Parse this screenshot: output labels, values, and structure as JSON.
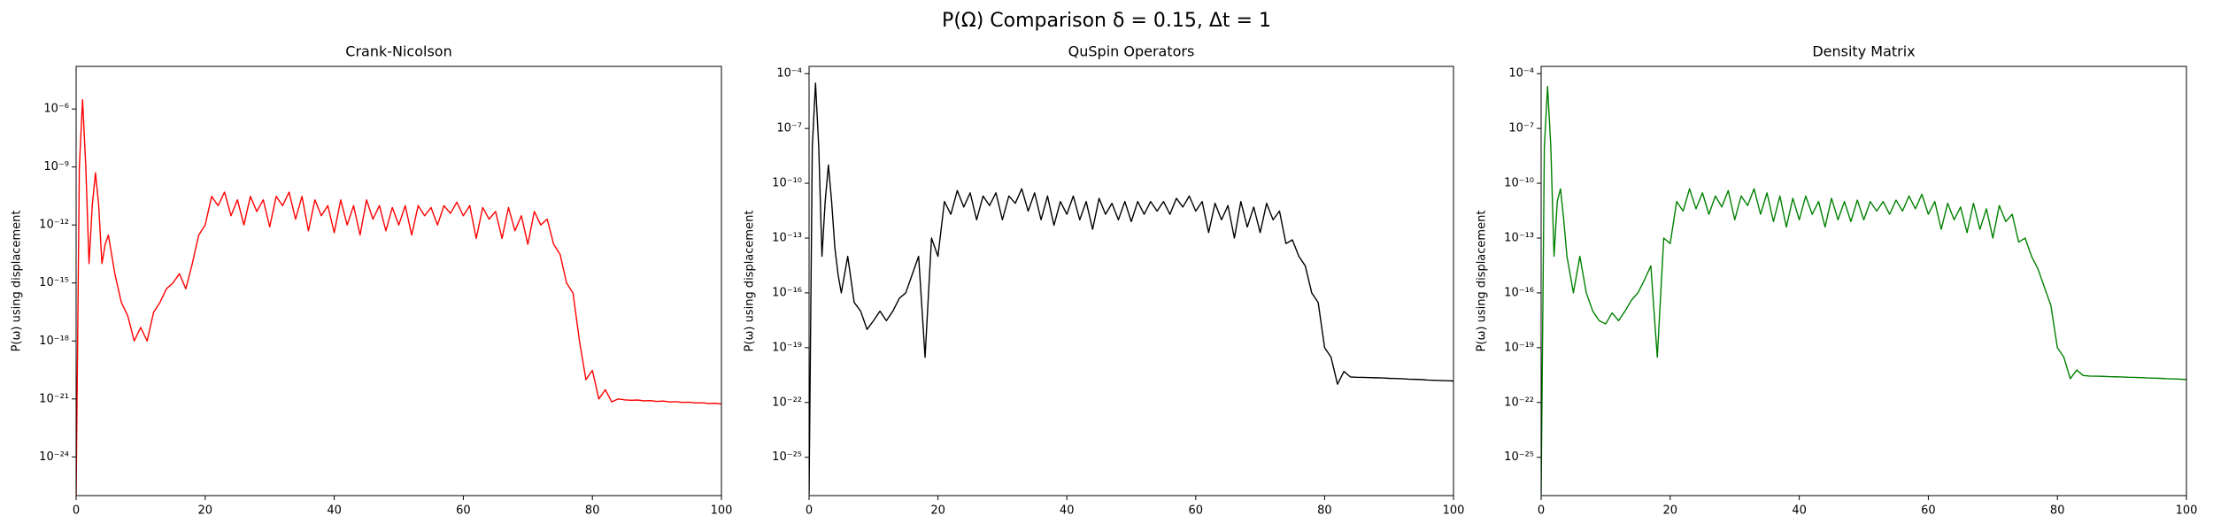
{
  "title": "P(Ω) Comparison δ = 0.15, Δt = 1",
  "chart_data": [
    {
      "type": "line",
      "title": "Crank-Nicolson",
      "ylabel": "P(ω) using displacement",
      "yscale": "log",
      "color": "#ff0000",
      "xlim": [
        0,
        100
      ],
      "xticks": [
        0,
        20,
        40,
        60,
        80,
        100
      ],
      "ylim": [
        1e-26,
        0.00016
      ],
      "yticks": [
        {
          "value": 1e-06,
          "label": "10⁻⁶"
        },
        {
          "value": 1e-09,
          "label": "10⁻⁹"
        },
        {
          "value": 1e-12,
          "label": "10⁻¹²"
        },
        {
          "value": 1e-15,
          "label": "10⁻¹⁵"
        },
        {
          "value": 1e-18,
          "label": "10⁻¹⁸"
        },
        {
          "value": 1e-21,
          "label": "10⁻²¹"
        },
        {
          "value": 1e-24,
          "label": "10⁻²⁴"
        }
      ],
      "x": [
        0,
        0.5,
        1,
        1.5,
        2,
        2.5,
        3,
        3.5,
        4,
        4.5,
        5,
        6,
        7,
        8,
        9,
        10,
        11,
        12,
        13,
        14,
        15,
        16,
        17,
        18,
        19,
        20,
        21,
        22,
        23,
        24,
        25,
        26,
        27,
        28,
        29,
        30,
        31,
        32,
        33,
        34,
        35,
        36,
        37,
        38,
        39,
        40,
        41,
        42,
        43,
        44,
        45,
        46,
        47,
        48,
        49,
        50,
        51,
        52,
        53,
        54,
        55,
        56,
        57,
        58,
        59,
        60,
        61,
        62,
        63,
        64,
        65,
        66,
        67,
        68,
        69,
        70,
        71,
        72,
        73,
        74,
        75,
        76,
        77,
        78,
        79,
        80,
        81,
        82,
        83,
        84,
        85,
        86,
        87,
        88,
        89,
        90,
        91,
        92,
        93,
        94,
        95,
        96,
        97,
        98,
        99,
        100
      ],
      "values": [
        1e-26,
        1e-09,
        3e-06,
        1e-09,
        1e-14,
        1e-11,
        5e-10,
        1e-11,
        1e-14,
        1e-13,
        3e-13,
        3e-15,
        1e-16,
        2e-17,
        1e-18,
        5e-18,
        1e-18,
        3e-17,
        1e-16,
        5e-16,
        1e-15,
        3e-15,
        5e-16,
        1e-14,
        3e-13,
        1e-12,
        3e-11,
        1e-11,
        5e-11,
        3e-12,
        2e-11,
        1e-12,
        3e-11,
        5e-12,
        2e-11,
        8e-13,
        3e-11,
        1e-11,
        5e-11,
        2e-12,
        3e-11,
        5e-13,
        2e-11,
        3e-12,
        1e-11,
        4e-13,
        2e-11,
        1e-12,
        1e-11,
        3e-13,
        2e-11,
        2e-12,
        1e-11,
        5e-13,
        8e-12,
        1e-12,
        1e-11,
        3e-13,
        1e-11,
        3e-12,
        8e-12,
        1e-12,
        1e-11,
        4e-12,
        1.5e-11,
        3e-12,
        1e-11,
        2e-13,
        8e-12,
        2e-12,
        5e-12,
        2e-13,
        8e-12,
        5e-13,
        3e-12,
        1e-13,
        5e-12,
        1e-12,
        2e-12,
        1e-13,
        3e-14,
        1e-15,
        3e-16,
        1e-18,
        1e-20,
        3e-20,
        1e-21,
        3e-21,
        7e-22,
        1e-21,
        9e-22,
        8.5e-22,
        8.8e-22,
        8e-22,
        8.2e-22,
        7.5e-22,
        7.8e-22,
        7e-22,
        7.2e-22,
        6.6e-22,
        6.8e-22,
        6.2e-22,
        6.4e-22,
        5.8e-22,
        6e-22,
        5.5e-22
      ]
    },
    {
      "type": "line",
      "title": "QuSpin Operators",
      "ylabel": "P(ω) using displacement",
      "yscale": "log",
      "color": "#000000",
      "xlim": [
        0,
        100
      ],
      "xticks": [
        0,
        20,
        40,
        60,
        80,
        100
      ],
      "ylim": [
        8e-28,
        0.00025
      ],
      "yticks": [
        {
          "value": 0.0001,
          "label": "10⁻⁴"
        },
        {
          "value": 1e-07,
          "label": "10⁻⁷"
        },
        {
          "value": 1e-10,
          "label": "10⁻¹⁰"
        },
        {
          "value": 1e-13,
          "label": "10⁻¹³"
        },
        {
          "value": 1e-16,
          "label": "10⁻¹⁶"
        },
        {
          "value": 1e-19,
          "label": "10⁻¹⁹"
        },
        {
          "value": 1e-22,
          "label": "10⁻²²"
        },
        {
          "value": 1e-25,
          "label": "10⁻²⁵"
        }
      ],
      "x": [
        0,
        0.5,
        1,
        1.5,
        2,
        2.5,
        3,
        3.5,
        4,
        4.5,
        5,
        6,
        7,
        8,
        9,
        10,
        11,
        12,
        13,
        14,
        15,
        16,
        17,
        18,
        19,
        20,
        21,
        22,
        23,
        24,
        25,
        26,
        27,
        28,
        29,
        30,
        31,
        32,
        33,
        34,
        35,
        36,
        37,
        38,
        39,
        40,
        41,
        42,
        43,
        44,
        45,
        46,
        47,
        48,
        49,
        50,
        51,
        52,
        53,
        54,
        55,
        56,
        57,
        58,
        59,
        60,
        61,
        62,
        63,
        64,
        65,
        66,
        67,
        68,
        69,
        70,
        71,
        72,
        73,
        74,
        75,
        76,
        77,
        78,
        79,
        80,
        81,
        82,
        83,
        84,
        85,
        86,
        87,
        88,
        89,
        90,
        91,
        92,
        93,
        94,
        95,
        96,
        97,
        98,
        99,
        100
      ],
      "values": [
        1e-27,
        1e-08,
        3e-05,
        1e-08,
        1e-14,
        1e-11,
        1e-09,
        1e-11,
        3e-14,
        1e-15,
        1e-16,
        1e-14,
        3e-17,
        1e-17,
        1e-18,
        3e-18,
        1e-17,
        3e-18,
        1e-17,
        5e-17,
        1e-16,
        1e-15,
        1e-14,
        3e-20,
        1e-13,
        1e-14,
        1e-11,
        2e-12,
        4e-11,
        5e-12,
        3e-11,
        1e-12,
        2e-11,
        6e-12,
        3e-11,
        1e-12,
        2e-11,
        8e-12,
        5e-11,
        3e-12,
        3e-11,
        1e-12,
        2e-11,
        5e-13,
        1e-11,
        2e-12,
        2e-11,
        1e-12,
        1e-11,
        3e-13,
        1.5e-11,
        2e-12,
        8e-12,
        1e-12,
        1e-11,
        8e-13,
        1e-11,
        2e-12,
        1e-11,
        3e-12,
        1e-11,
        2e-12,
        1.5e-11,
        5e-12,
        2e-11,
        3e-12,
        1e-11,
        2e-13,
        8e-12,
        1e-12,
        6e-12,
        1e-13,
        1e-11,
        4e-13,
        5e-12,
        2e-13,
        8e-12,
        1e-12,
        3e-12,
        5e-14,
        8e-14,
        1e-14,
        3e-15,
        1e-16,
        3e-17,
        1e-19,
        3e-20,
        1e-21,
        5e-21,
        2.5e-21,
        2.4e-21,
        2.35e-21,
        2.3e-21,
        2.25e-21,
        2.2e-21,
        2.1e-21,
        2.05e-21,
        2e-21,
        1.9e-21,
        1.85e-21,
        1.8e-21,
        1.7e-21,
        1.65e-21,
        1.6e-21,
        1.55e-21,
        1.5e-21
      ]
    },
    {
      "type": "line",
      "title": "Density Matrix",
      "ylabel": "P(ω) using displacement",
      "yscale": "log",
      "color": "#008000",
      "xlim": [
        0,
        100
      ],
      "xticks": [
        0,
        20,
        40,
        60,
        80,
        100
      ],
      "ylim": [
        8e-28,
        0.00025
      ],
      "yticks": [
        {
          "value": 0.0001,
          "label": "10⁻⁴"
        },
        {
          "value": 1e-07,
          "label": "10⁻⁷"
        },
        {
          "value": 1e-10,
          "label": "10⁻¹⁰"
        },
        {
          "value": 1e-13,
          "label": "10⁻¹³"
        },
        {
          "value": 1e-16,
          "label": "10⁻¹⁶"
        },
        {
          "value": 1e-19,
          "label": "10⁻¹⁹"
        },
        {
          "value": 1e-22,
          "label": "10⁻²²"
        },
        {
          "value": 1e-25,
          "label": "10⁻²⁵"
        }
      ],
      "x": [
        0,
        0.5,
        1,
        1.5,
        2,
        2.5,
        3,
        3.5,
        4,
        4.5,
        5,
        6,
        7,
        8,
        9,
        10,
        11,
        12,
        13,
        14,
        15,
        16,
        17,
        18,
        19,
        20,
        21,
        22,
        23,
        24,
        25,
        26,
        27,
        28,
        29,
        30,
        31,
        32,
        33,
        34,
        35,
        36,
        37,
        38,
        39,
        40,
        41,
        42,
        43,
        44,
        45,
        46,
        47,
        48,
        49,
        50,
        51,
        52,
        53,
        54,
        55,
        56,
        57,
        58,
        59,
        60,
        61,
        62,
        63,
        64,
        65,
        66,
        67,
        68,
        69,
        70,
        71,
        72,
        73,
        74,
        75,
        76,
        77,
        78,
        79,
        80,
        81,
        82,
        83,
        84,
        85,
        86,
        87,
        88,
        89,
        90,
        91,
        92,
        93,
        94,
        95,
        96,
        97,
        98,
        99,
        100
      ],
      "values": [
        1e-27,
        1e-08,
        2e-05,
        1e-08,
        1e-14,
        1e-11,
        5e-11,
        1e-12,
        1e-14,
        1e-15,
        1e-16,
        1e-14,
        1e-16,
        1e-17,
        3e-18,
        2e-18,
        8e-18,
        3e-18,
        1e-17,
        4e-17,
        1e-16,
        5e-16,
        3e-15,
        3e-20,
        1e-13,
        5e-14,
        1e-11,
        3e-12,
        5e-11,
        4e-12,
        3e-11,
        2e-12,
        2e-11,
        5e-12,
        4e-11,
        1e-12,
        2e-11,
        6e-12,
        5e-11,
        2e-12,
        3e-11,
        8e-13,
        2e-11,
        4e-13,
        1.5e-11,
        1e-12,
        2e-11,
        2e-12,
        1e-11,
        4e-13,
        1.5e-11,
        1e-12,
        1e-11,
        8e-13,
        1.2e-11,
        1e-12,
        1e-11,
        3e-12,
        1e-11,
        2e-12,
        1.2e-11,
        3e-12,
        2e-11,
        4e-12,
        2.5e-11,
        2e-12,
        1e-11,
        3e-13,
        8e-12,
        1e-12,
        5e-12,
        2e-13,
        8e-12,
        3e-13,
        4e-12,
        1e-13,
        6e-12,
        8e-13,
        2e-12,
        6e-14,
        1e-13,
        1e-14,
        2e-15,
        2e-16,
        2e-17,
        1e-19,
        3e-20,
        2e-21,
        6e-21,
        3e-21,
        2.8e-21,
        2.75e-21,
        2.7e-21,
        2.6e-21,
        2.55e-21,
        2.5e-21,
        2.4e-21,
        2.35e-21,
        2.3e-21,
        2.2e-21,
        2.15e-21,
        2.1e-21,
        2e-21,
        1.95e-21,
        1.9e-21,
        1.8e-21
      ]
    }
  ]
}
